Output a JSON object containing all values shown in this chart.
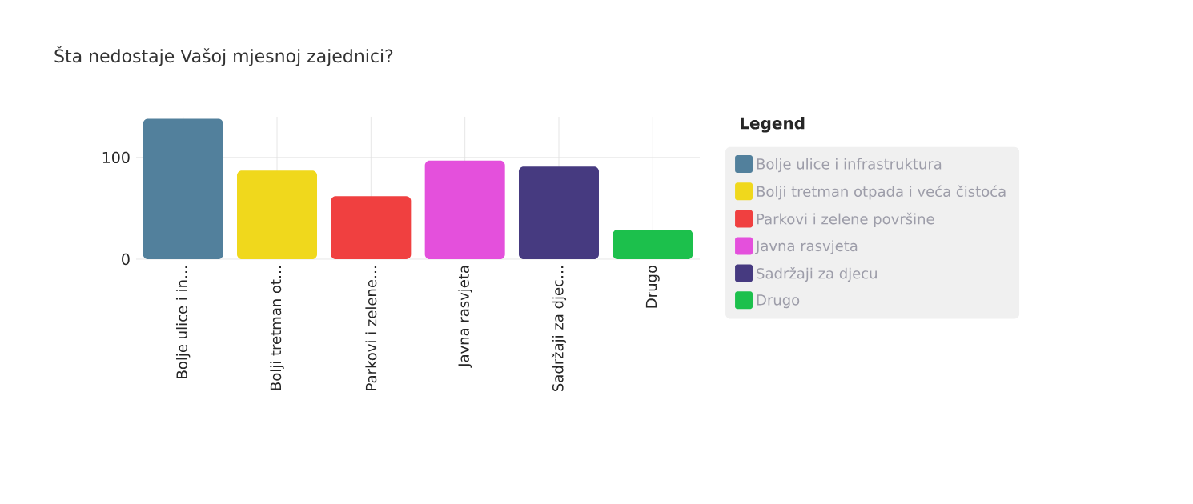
{
  "chart_data": {
    "type": "bar",
    "title": "Šta nedostaje Vašoj mjesnoj zajednici?",
    "categories": [
      "Bolje ulice i in…",
      "Bolji tretman ot…",
      "Parkovi i zelene…",
      "Javna rasvjeta",
      "Sadržaji za djec…",
      "Drugo"
    ],
    "series": [
      {
        "name": "Bolje ulice i infrastruktura",
        "color": "#52809c",
        "values": [
          138,
          null,
          null,
          null,
          null,
          null
        ]
      },
      {
        "name": "Bolji tretman otpada i veća čistoća",
        "color": "#f0d81c",
        "values": [
          null,
          87,
          null,
          null,
          null,
          null
        ]
      },
      {
        "name": "Parkovi i zelene površine",
        "color": "#f04040",
        "values": [
          null,
          null,
          62,
          null,
          null,
          null
        ]
      },
      {
        "name": "Javna rasvjeta",
        "color": "#e450dc",
        "values": [
          null,
          null,
          null,
          97,
          null,
          null
        ]
      },
      {
        "name": "Sadržaji za djecu",
        "color": "#463a80",
        "values": [
          null,
          null,
          null,
          null,
          91,
          null
        ]
      },
      {
        "name": "Drugo",
        "color": "#1cc04c",
        "values": [
          null,
          null,
          null,
          null,
          null,
          29
        ]
      }
    ],
    "ylim": [
      0,
      140
    ],
    "yticks": [
      0,
      100
    ],
    "grid": true,
    "legend": "right",
    "legend_title": "Legend"
  }
}
